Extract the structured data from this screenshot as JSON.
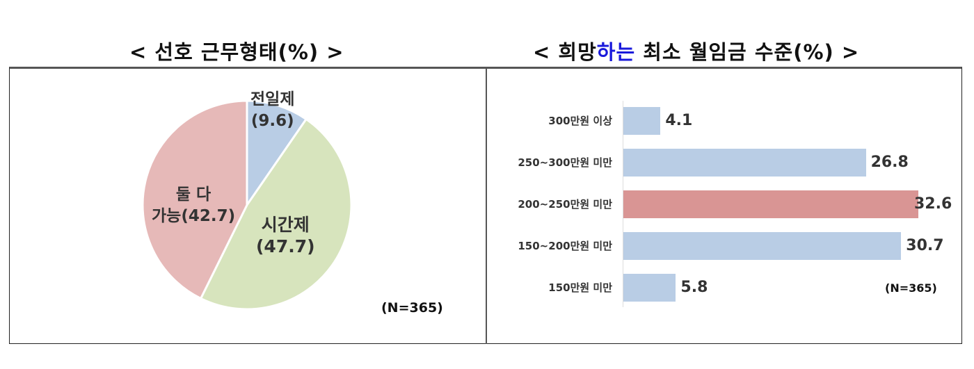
{
  "left_panel": {
    "title_prefix": "< 선호 근무형태(%) >",
    "n_label": "(N=365)"
  },
  "right_panel": {
    "title_part1": "< 희망",
    "title_highlight": "하는",
    "title_part2": " 최소 월임금 수준(%) >",
    "n_label": "(N=365)"
  },
  "colors": {
    "pie_fulltime": "#b9cde5",
    "pie_parttime": "#d7e4bd",
    "pie_both": "#e6b9b8",
    "bar_default": "#b9cde5",
    "bar_highlight": "#d99594",
    "title_highlight": "#1a1adb"
  },
  "pie_labels": {
    "fulltime_name": "전일제",
    "fulltime_value": "(9.6)",
    "parttime_name": "시간제",
    "parttime_value": "(47.7)",
    "both_name": "둘 다",
    "both_value": "가능(42.7)"
  },
  "bar_labels": {
    "c0": "300만원 이상",
    "v0": "4.1",
    "c1": "250~300만원 미만",
    "v1": "26.8",
    "c2": "200~250만원 미만",
    "v2": "32.6",
    "c3": "150~200만원 미만",
    "v3": "30.7",
    "c4": "150만원 미만",
    "v4": "5.8"
  },
  "chart_data": [
    {
      "type": "pie",
      "title": "< 선호 근무형태(%) >",
      "categories": [
        "전일제",
        "시간제",
        "둘 다 가능"
      ],
      "values": [
        9.6,
        47.7,
        42.7
      ],
      "colors": [
        "#b9cde5",
        "#d7e4bd",
        "#e6b9b8"
      ],
      "annotations": [
        "(N=365)"
      ],
      "legend": "none (labels on slices)"
    },
    {
      "type": "bar",
      "orientation": "horizontal",
      "title": "< 희망하는 최소 월임금 수준(%) >",
      "categories": [
        "300만원 이상",
        "250~300만원 미만",
        "200~250만원 미만",
        "150~200만원 미만",
        "150만원 미만"
      ],
      "values": [
        4.1,
        26.8,
        32.6,
        30.7,
        5.8
      ],
      "highlighted_category": "200~250만원 미만",
      "xlabel": "",
      "ylabel": "",
      "xlim": [
        0,
        35
      ],
      "grid": false,
      "annotations": [
        "(N=365)"
      ]
    }
  ]
}
